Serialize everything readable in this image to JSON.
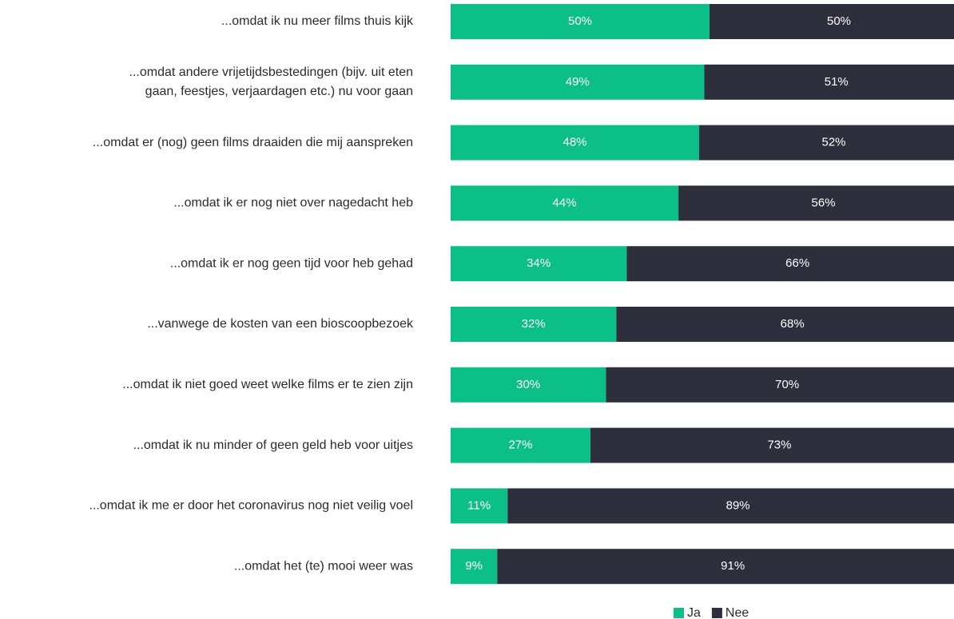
{
  "chart_data": {
    "type": "stacked-bar-100",
    "categories": [
      "...omdat ik nu meer films thuis kijk",
      [
        "...omdat andere vrijetijdsbestedingen (bijv. uit eten",
        "gaan, feestjes, verjaardagen etc.) nu voor gaan"
      ],
      "...omdat er (nog) geen films draaiden die mij aanspreken",
      "...omdat ik er nog niet over nagedacht heb",
      "...omdat ik er nog geen tijd voor heb gehad",
      "...vanwege de kosten van een bioscoopbezoek",
      "...omdat ik niet goed weet welke films er te zien zijn",
      "...omdat ik nu minder of geen geld heb voor uitjes",
      "...omdat ik me er door het coronavirus nog niet veilig voel",
      "...omdat het (te) mooi weer was"
    ],
    "series": [
      {
        "name": "Ja",
        "color": "#0bbf86",
        "values": [
          50,
          49,
          48,
          44,
          34,
          32,
          30,
          27,
          11,
          9
        ],
        "value_labels": [
          "50%",
          "49%",
          "48%",
          "44%",
          "34%",
          "32%",
          "30%",
          "27%",
          "11%",
          "9%"
        ]
      },
      {
        "name": "Nee",
        "color": "#2d2f3d",
        "values": [
          50,
          51,
          52,
          56,
          66,
          68,
          70,
          73,
          89,
          91
        ],
        "value_labels": [
          "50%",
          "51%",
          "52%",
          "56%",
          "66%",
          "68%",
          "70%",
          "73%",
          "89%",
          "91%"
        ]
      }
    ],
    "xlim": [
      0,
      100
    ],
    "legend": "bottom"
  }
}
